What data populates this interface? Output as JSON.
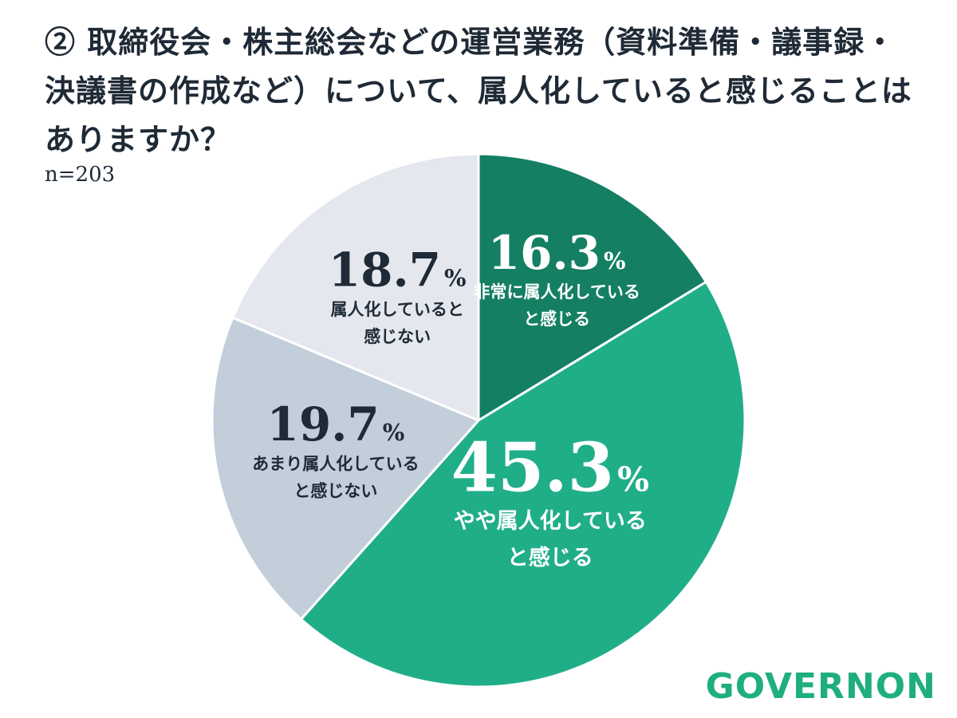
{
  "title_lines": [
    "② 取締役会・株主総会などの運営業務（資料準備・議事録・",
    "決議書の作成など）について、属人化していると感じることは",
    "ありますか？"
  ],
  "sample_size": "n=203",
  "brand": {
    "name": "GOVERNON",
    "color": "#1fae80"
  },
  "chart_data": {
    "type": "pie",
    "start": "12 o'clock",
    "direction": "clockwise",
    "slices": [
      {
        "value": 16.3,
        "value_text": "16.3",
        "unit": "%",
        "label_lines": [
          "非常に属人化している",
          "と感じる"
        ],
        "color": "#147f63",
        "text_color": "#ffffff"
      },
      {
        "value": 45.3,
        "value_text": "45.3",
        "unit": "%",
        "label_lines": [
          "やや属人化している",
          "と感じる"
        ],
        "color": "#20ae89",
        "text_color": "#ffffff"
      },
      {
        "value": 19.7,
        "value_text": "19.7",
        "unit": "%",
        "label_lines": [
          "あまり属人化している",
          "と感じない"
        ],
        "color": "#c3cedb",
        "text_color": "#1f2a36"
      },
      {
        "value": 18.7,
        "value_text": "18.7",
        "unit": "%",
        "label_lines": [
          "属人化していると",
          "感じない"
        ],
        "color": "#e4e7ee",
        "text_color": "#1f2a36"
      }
    ]
  }
}
